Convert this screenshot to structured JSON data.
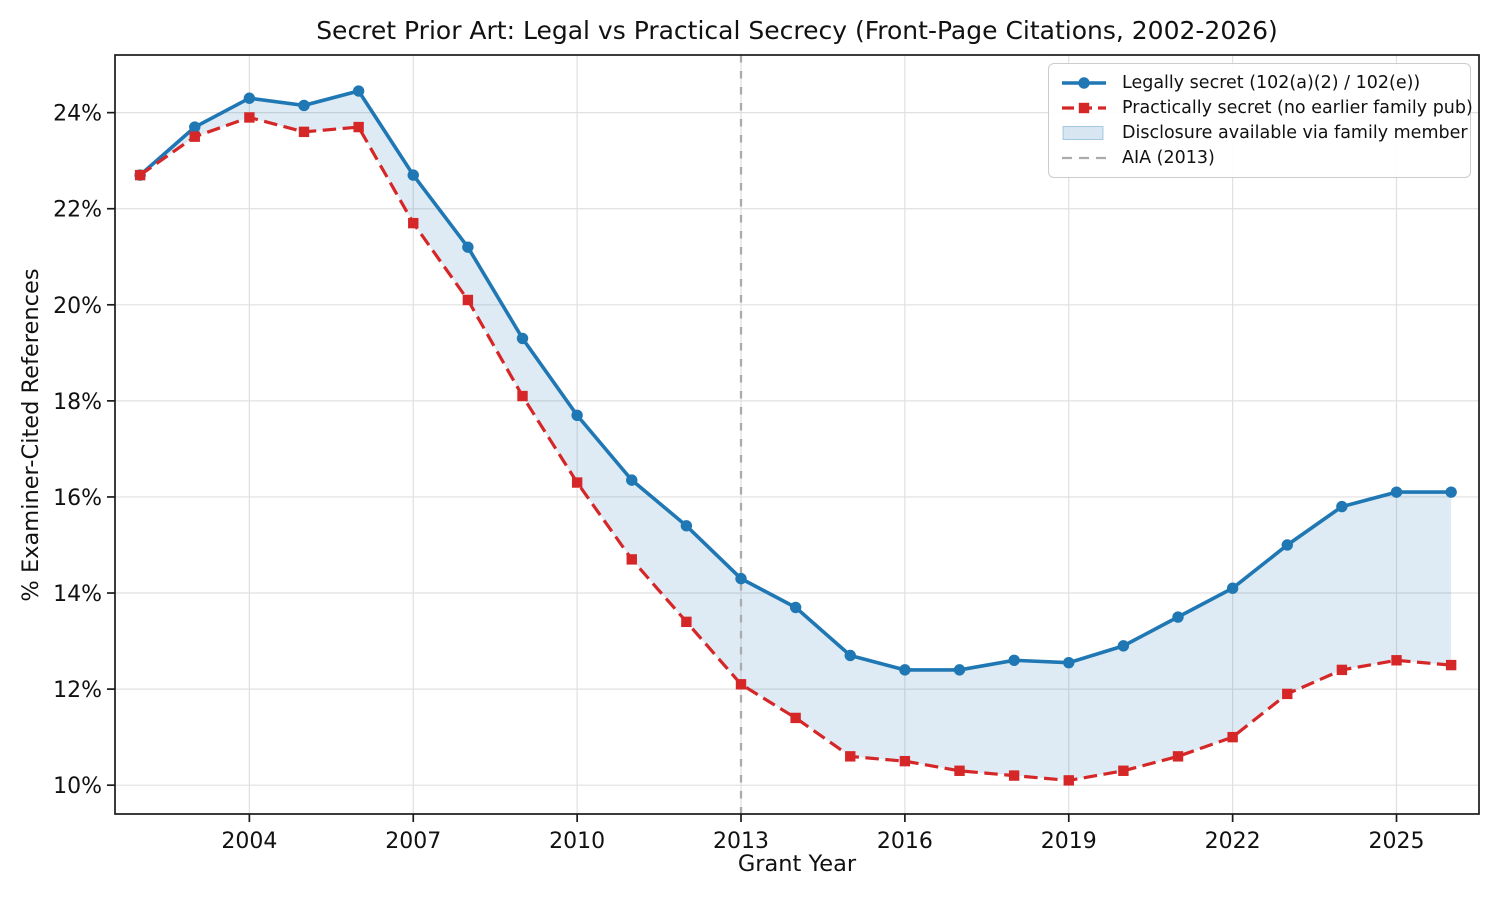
{
  "chart_data": {
    "type": "line",
    "title": "Secret Prior Art: Legal vs Practical Secrecy (Front-Page Citations, 2002-2026)",
    "xlabel": "Grant Year",
    "ylabel": "% Examiner-Cited References",
    "x": [
      2002,
      2003,
      2004,
      2005,
      2006,
      2007,
      2008,
      2009,
      2010,
      2011,
      2012,
      2013,
      2014,
      2015,
      2016,
      2017,
      2018,
      2019,
      2020,
      2021,
      2022,
      2023,
      2024,
      2025,
      2026
    ],
    "series": [
      {
        "name": "Legally secret (102(a)(2) / 102(e))",
        "color": "#1f77b4",
        "line_style": "solid",
        "marker": "circle",
        "values": [
          22.7,
          23.7,
          24.3,
          24.15,
          24.45,
          22.7,
          21.2,
          19.3,
          17.7,
          16.35,
          15.4,
          14.3,
          13.7,
          12.7,
          12.4,
          12.4,
          12.6,
          12.55,
          12.9,
          13.5,
          14.1,
          15.0,
          15.8,
          16.1,
          16.1
        ]
      },
      {
        "name": "Practically secret (no earlier family pub)",
        "color": "#d62728",
        "line_style": "dashed",
        "marker": "square",
        "values": [
          22.7,
          23.5,
          23.9,
          23.6,
          23.7,
          21.7,
          20.1,
          18.1,
          16.3,
          14.7,
          13.4,
          12.1,
          11.4,
          10.6,
          10.5,
          10.3,
          10.2,
          10.1,
          10.3,
          10.6,
          11.0,
          11.9,
          12.4,
          12.6,
          12.5
        ]
      }
    ],
    "band": {
      "label": "Disclosure available via family member",
      "between": [
        "Legally secret (102(a)(2) / 102(e))",
        "Practically secret (no earlier family pub)"
      ],
      "color": "#1f77b4",
      "alpha": 0.15
    },
    "vline": {
      "label": "AIA (2013)",
      "x": 2013,
      "color": "#ababab",
      "line_style": "dashed"
    },
    "xticks": [
      "2004",
      "2007",
      "2010",
      "2013",
      "2016",
      "2019",
      "2022",
      "2025"
    ],
    "yticks": [
      10,
      12,
      14,
      16,
      18,
      20,
      22,
      24
    ],
    "ytick_suffix": "%",
    "xlim": [
      2001.54,
      2026.51
    ],
    "ylim": [
      9.4,
      25.2
    ],
    "grid": true,
    "legend_position": "upper right",
    "colors": {
      "grid": "#e0e0e0",
      "spine": "#1b1b1b",
      "text": "#111111",
      "legend_border": "#cccccc"
    }
  }
}
